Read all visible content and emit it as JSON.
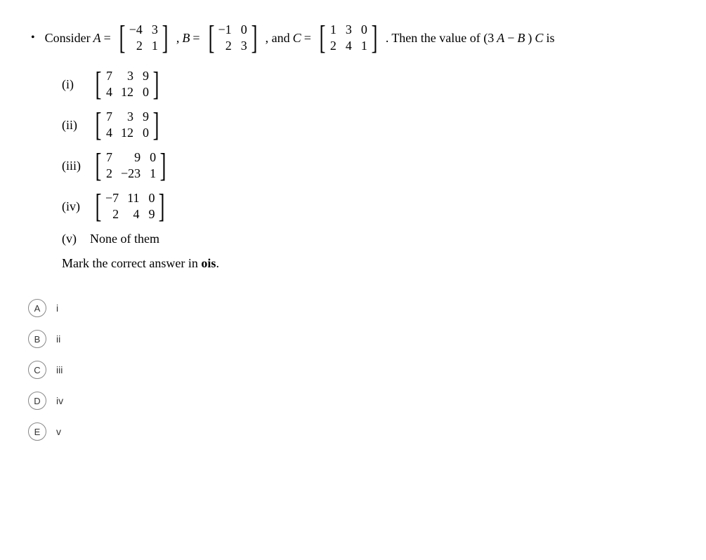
{
  "question": {
    "lead": "Consider ",
    "A_label": "A",
    "eq": " = ",
    "B_label": "B",
    "C_label": "C",
    "and": ", and ",
    "comma": ", ",
    "period": ". ",
    "tail_1": "Then the value of (3",
    "tail_2": " − ",
    "tail_3": ")",
    "tail_4": " is"
  },
  "matrices": {
    "A": {
      "rows": 2,
      "cols": 2,
      "cells": [
        "−4",
        "3",
        "2",
        "1"
      ]
    },
    "B": {
      "rows": 2,
      "cols": 2,
      "cells": [
        "−1",
        "0",
        "2",
        "3"
      ]
    },
    "C": {
      "rows": 2,
      "cols": 3,
      "cells": [
        "1",
        "3",
        "0",
        "2",
        "4",
        "1"
      ]
    }
  },
  "options": [
    {
      "label": "(i)",
      "rows": 2,
      "cols": 3,
      "cells": [
        "7",
        "3",
        "9",
        "4",
        "12",
        "0"
      ],
      "text": null
    },
    {
      "label": "(ii)",
      "rows": 2,
      "cols": 3,
      "cells": [
        "7",
        "3",
        "9",
        "4",
        "12",
        "0"
      ],
      "text": null
    },
    {
      "label": "(iii)",
      "rows": 2,
      "cols": 3,
      "cells": [
        "7",
        "9",
        "0",
        "2",
        "−23",
        "1"
      ],
      "text": null
    },
    {
      "label": "(iv)",
      "rows": 2,
      "cols": 3,
      "cells": [
        "−7",
        "11",
        "0",
        "2",
        "4",
        "9"
      ],
      "text": null
    },
    {
      "label": "(v)",
      "rows": 0,
      "cols": 0,
      "cells": [],
      "text": "None of them"
    }
  ],
  "instruction_pre": "Mark the correct answer in ",
  "instruction_bold": "ois",
  "instruction_post": ".",
  "answers": [
    {
      "letter": "A",
      "text": "i"
    },
    {
      "letter": "B",
      "text": "ii"
    },
    {
      "letter": "C",
      "text": "iii"
    },
    {
      "letter": "D",
      "text": "iv"
    },
    {
      "letter": "E",
      "text": "v"
    }
  ],
  "brackets": {
    "left": "[",
    "right": "]"
  }
}
